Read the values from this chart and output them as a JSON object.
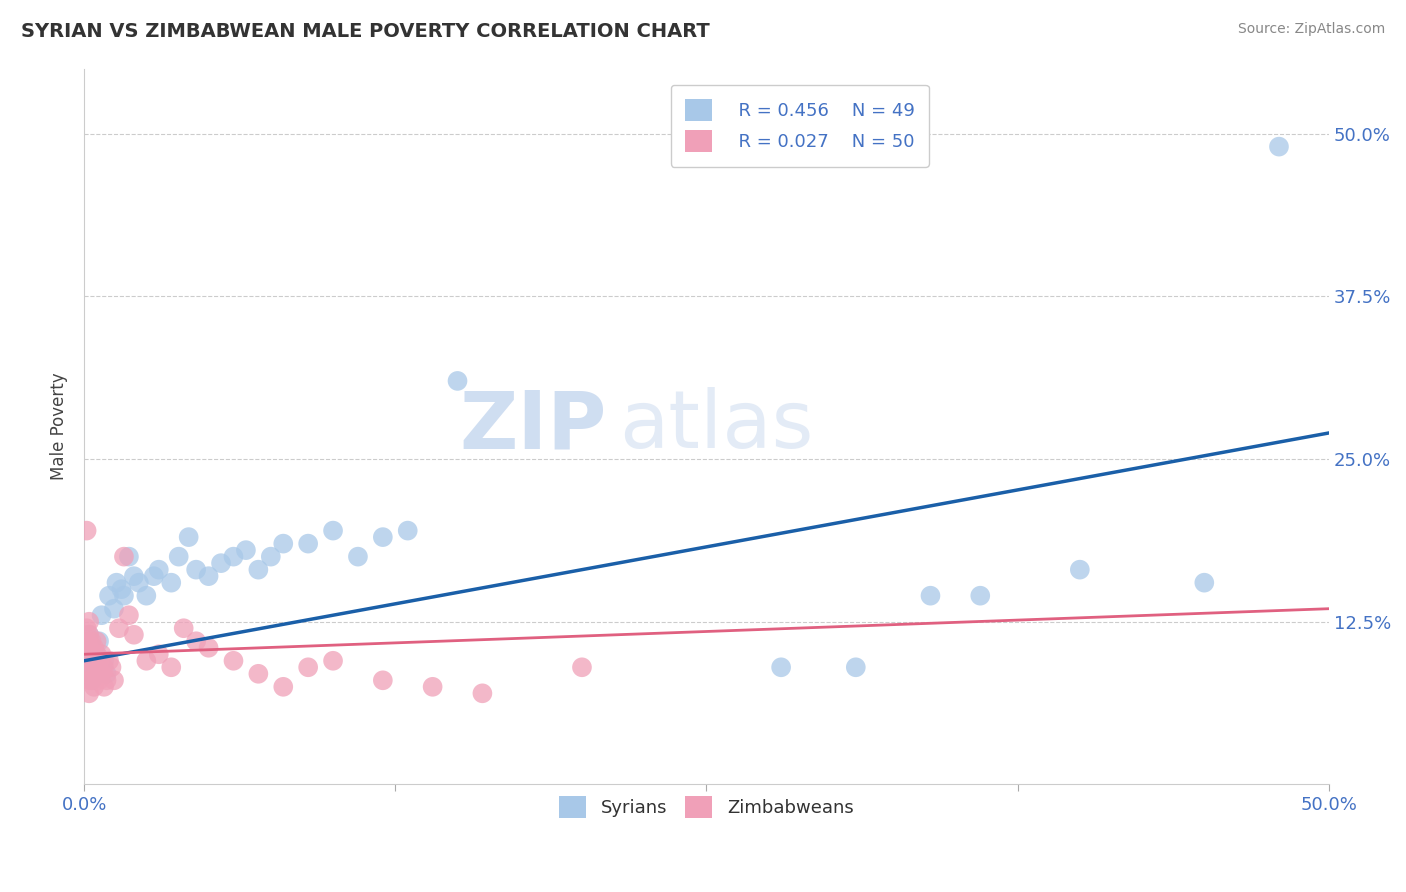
{
  "title": "SYRIAN VS ZIMBABWEAN MALE POVERTY CORRELATION CHART",
  "source": "Source: ZipAtlas.com",
  "ylabel": "Male Poverty",
  "xlim": [
    0.0,
    0.5
  ],
  "ylim": [
    0.0,
    0.55
  ],
  "syrian_color": "#a8c8e8",
  "zimbabwean_color": "#f0a0b8",
  "syrian_line_color": "#1a5fa8",
  "zimbabwean_line_color": "#e06080",
  "background_color": "#ffffff",
  "grid_color": "#cccccc",
  "legend_R1": "R = 0.456",
  "legend_N1": "N = 49",
  "legend_R2": "R = 0.027",
  "legend_N2": "N = 50",
  "watermark_zip": "ZIP",
  "watermark_atlas": "atlas",
  "label_syrians": "Syrians",
  "label_zimbabweans": "Zimbabweans",
  "syrian_x": [
    0.001,
    0.001,
    0.002,
    0.002,
    0.003,
    0.003,
    0.004,
    0.004,
    0.005,
    0.005,
    0.006,
    0.007,
    0.008,
    0.009,
    0.01,
    0.012,
    0.013,
    0.015,
    0.016,
    0.018,
    0.02,
    0.022,
    0.025,
    0.028,
    0.03,
    0.035,
    0.038,
    0.042,
    0.045,
    0.05,
    0.055,
    0.06,
    0.065,
    0.07,
    0.075,
    0.08,
    0.09,
    0.1,
    0.11,
    0.12,
    0.13,
    0.15,
    0.28,
    0.31,
    0.34,
    0.36,
    0.4,
    0.45,
    0.48
  ],
  "syrian_y": [
    0.1,
    0.09,
    0.115,
    0.095,
    0.105,
    0.08,
    0.085,
    0.095,
    0.09,
    0.1,
    0.11,
    0.13,
    0.095,
    0.085,
    0.145,
    0.135,
    0.155,
    0.15,
    0.145,
    0.175,
    0.16,
    0.155,
    0.145,
    0.16,
    0.165,
    0.155,
    0.175,
    0.19,
    0.165,
    0.16,
    0.17,
    0.175,
    0.18,
    0.165,
    0.175,
    0.185,
    0.185,
    0.195,
    0.175,
    0.19,
    0.195,
    0.31,
    0.09,
    0.09,
    0.145,
    0.145,
    0.165,
    0.155,
    0.49
  ],
  "zimbabwean_x": [
    0.001,
    0.001,
    0.001,
    0.001,
    0.001,
    0.002,
    0.002,
    0.002,
    0.002,
    0.002,
    0.002,
    0.003,
    0.003,
    0.003,
    0.003,
    0.004,
    0.004,
    0.004,
    0.005,
    0.005,
    0.005,
    0.006,
    0.006,
    0.007,
    0.007,
    0.008,
    0.008,
    0.009,
    0.01,
    0.011,
    0.012,
    0.014,
    0.016,
    0.018,
    0.02,
    0.025,
    0.03,
    0.035,
    0.04,
    0.045,
    0.05,
    0.06,
    0.07,
    0.08,
    0.09,
    0.1,
    0.12,
    0.14,
    0.16,
    0.2
  ],
  "zimbabwean_y": [
    0.195,
    0.12,
    0.11,
    0.1,
    0.085,
    0.125,
    0.115,
    0.105,
    0.095,
    0.08,
    0.07,
    0.11,
    0.1,
    0.09,
    0.08,
    0.105,
    0.095,
    0.075,
    0.11,
    0.1,
    0.085,
    0.095,
    0.08,
    0.1,
    0.085,
    0.09,
    0.075,
    0.08,
    0.095,
    0.09,
    0.08,
    0.12,
    0.175,
    0.13,
    0.115,
    0.095,
    0.1,
    0.09,
    0.12,
    0.11,
    0.105,
    0.095,
    0.085,
    0.075,
    0.09,
    0.095,
    0.08,
    0.075,
    0.07,
    0.09
  ],
  "syrian_line_x": [
    0.0,
    0.5
  ],
  "syrian_line_y": [
    0.095,
    0.27
  ],
  "zimbabwean_line_x": [
    0.0,
    0.5
  ],
  "zimbabwean_line_y": [
    0.1,
    0.135
  ]
}
